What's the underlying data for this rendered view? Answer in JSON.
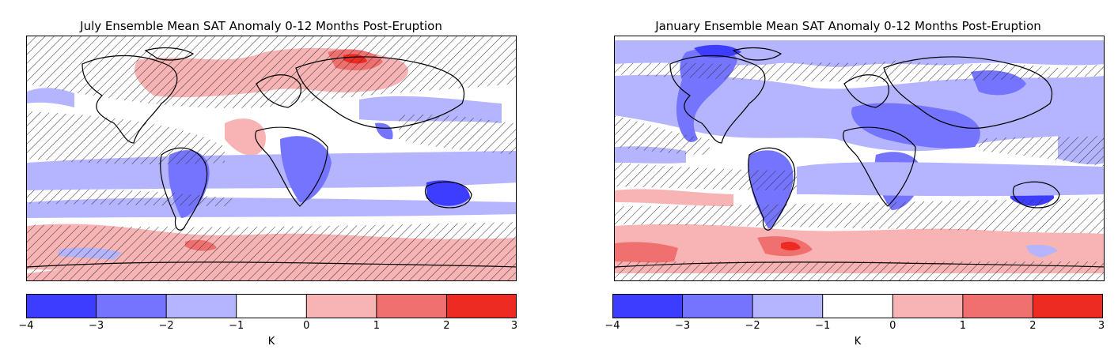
{
  "colorbar": {
    "ticks": [
      "−4",
      "−3",
      "−2",
      "−1",
      "0",
      "1",
      "2",
      "3"
    ],
    "bins": [
      {
        "range": [
          -4,
          -3
        ],
        "color": "#3d3dff"
      },
      {
        "range": [
          -3,
          -2
        ],
        "color": "#7474ff"
      },
      {
        "range": [
          -2,
          -1
        ],
        "color": "#b4b4ff"
      },
      {
        "range": [
          -1,
          0
        ],
        "color": "#ffffff"
      },
      {
        "range": [
          0,
          1
        ],
        "color": "#f8b4b4"
      },
      {
        "range": [
          1,
          2
        ],
        "color": "#f07070"
      },
      {
        "range": [
          2,
          3
        ],
        "color": "#ee2b22"
      }
    ],
    "unit": "K"
  },
  "maps": [
    {
      "title": "July Ensemble Mean SAT Anomaly 0-12 Months Post-Eruption",
      "season": "july",
      "hatching": "stippled regions not significant"
    },
    {
      "title": "January Ensemble Mean SAT Anomaly 0-12 Months Post-Eruption",
      "season": "january",
      "hatching": "stippled regions not significant"
    }
  ],
  "legend": {
    "colors": {
      "blue_strong": "#3d3dff",
      "blue_mid": "#7474ff",
      "blue_light": "#b4b4ff",
      "red_light": "#f8b4b4",
      "red_mid": "#f07070",
      "red_strong": "#ee2b22"
    }
  }
}
